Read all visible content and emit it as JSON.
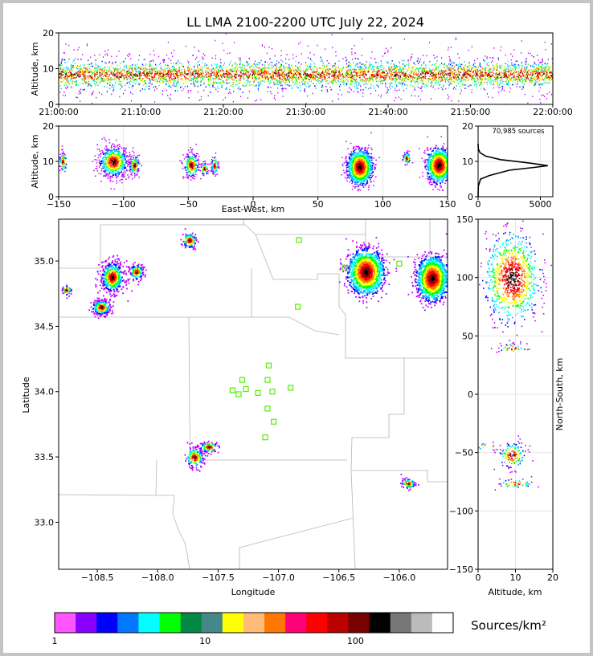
{
  "chart_data": {
    "type": "heatmap",
    "title": "LL LMA 2100-2200 UTC July 22, 2024",
    "colors": {
      "scale": [
        "#ff55ff",
        "#8800ff",
        "#0000ff",
        "#0077ff",
        "#00ffff",
        "#00ff00",
        "#008844",
        "#448888",
        "#ffff00",
        "#ffbb77",
        "#ff7700",
        "#ff0077",
        "#ff0000",
        "#bb0000",
        "#770000",
        "#000000",
        "#777777",
        "#bbbbbb",
        "#ffffff"
      ],
      "density_colors": [
        "#bb00ff",
        "#0000ff",
        "#00aaff",
        "#00ffff",
        "#00ff00",
        "#ffff00",
        "#ff7700",
        "#ff0000",
        "#880000",
        "#000000"
      ],
      "border": "#b5b5b5",
      "source_marker": "#55ee00",
      "grid": "#e6e6e6"
    },
    "time_height": {
      "ylabel": "Altitude, km",
      "xticks": [
        "21:00:00",
        "21:10:00",
        "21:20:00",
        "21:30:00",
        "21:40:00",
        "21:50:00",
        "22:00:00"
      ],
      "yticks": [
        "0",
        "10",
        "20"
      ],
      "ylim": [
        0,
        20
      ]
    },
    "ew_height": {
      "xlabel": "East-West, km",
      "ylabel": "Altitude, km",
      "xticks": [
        "−150",
        "−100",
        "−50",
        "0",
        "50",
        "100",
        "150"
      ],
      "yticks": [
        "0",
        "10",
        "20"
      ],
      "xlim": [
        -150,
        150
      ],
      "ylim": [
        0,
        20
      ],
      "clusters": [
        {
          "x": -108,
          "z": 10,
          "w": 12,
          "h": 5,
          "n": 220
        },
        {
          "x": -92,
          "z": 9,
          "w": 4,
          "h": 3,
          "n": 50
        },
        {
          "x": -48,
          "z": 9,
          "w": 6,
          "h": 4,
          "n": 90
        },
        {
          "x": -38,
          "z": 8,
          "w": 3,
          "h": 2,
          "n": 20
        },
        {
          "x": -30,
          "z": 9,
          "w": 3,
          "h": 3,
          "n": 30
        },
        {
          "x": 82,
          "z": 8.5,
          "w": 9,
          "h": 5,
          "n": 500
        },
        {
          "x": 118,
          "z": 11,
          "w": 3,
          "h": 2,
          "n": 25
        },
        {
          "x": 143,
          "z": 9,
          "w": 9,
          "h": 5,
          "n": 450
        },
        {
          "x": -147,
          "z": 10,
          "w": 3,
          "h": 3,
          "n": 30
        }
      ]
    },
    "histogram": {
      "label": "70,985 sources",
      "xticks": [
        "0",
        "5000"
      ],
      "yticks": [
        "0",
        "10",
        "20"
      ],
      "xlim": [
        0,
        6000
      ],
      "ylim": [
        0,
        20
      ],
      "curve": [
        [
          0,
          0
        ],
        [
          20,
          3
        ],
        [
          200,
          5
        ],
        [
          900,
          6
        ],
        [
          2500,
          7.5
        ],
        [
          4500,
          8.3
        ],
        [
          5600,
          8.8
        ],
        [
          4200,
          9.5
        ],
        [
          1800,
          10.5
        ],
        [
          600,
          11.5
        ],
        [
          150,
          12.5
        ],
        [
          20,
          13.5
        ],
        [
          0,
          15
        ]
      ]
    },
    "plan_view": {
      "xlabel": "Longitude",
      "ylabel": "Latitude",
      "xticks": [
        "−108.5",
        "−108.0",
        "−107.5",
        "−107.0",
        "−106.5",
        "−106.0"
      ],
      "yticks": [
        "33.0",
        "33.5",
        "34.0",
        "34.5",
        "35.0"
      ],
      "xlim": [
        -108.82,
        -105.6
      ],
      "ylim": [
        32.64,
        35.32
      ],
      "stations": [
        [
          -106.83,
          35.16
        ],
        [
          -106.45,
          34.95
        ],
        [
          -106.0,
          34.98
        ],
        [
          -106.84,
          34.65
        ],
        [
          -107.08,
          34.2
        ],
        [
          -107.3,
          34.09
        ],
        [
          -107.09,
          34.09
        ],
        [
          -107.38,
          34.01
        ],
        [
          -107.27,
          34.02
        ],
        [
          -107.17,
          33.99
        ],
        [
          -107.05,
          34.0
        ],
        [
          -106.9,
          34.03
        ],
        [
          -107.33,
          33.98
        ],
        [
          -107.09,
          33.87
        ],
        [
          -107.04,
          33.77
        ],
        [
          -107.11,
          33.65
        ]
      ],
      "clusters": [
        {
          "lon": -108.38,
          "lat": 34.88,
          "w": 0.05,
          "h": 0.06,
          "n": 180
        },
        {
          "lon": -108.18,
          "lat": 34.92,
          "w": 0.03,
          "h": 0.03,
          "n": 50
        },
        {
          "lon": -108.47,
          "lat": 34.65,
          "w": 0.04,
          "h": 0.03,
          "n": 90
        },
        {
          "lon": -108.76,
          "lat": 34.78,
          "w": 0.02,
          "h": 0.02,
          "n": 20
        },
        {
          "lon": -107.74,
          "lat": 35.16,
          "w": 0.03,
          "h": 0.03,
          "n": 40
        },
        {
          "lon": -107.7,
          "lat": 33.5,
          "w": 0.04,
          "h": 0.04,
          "n": 60
        },
        {
          "lon": -107.58,
          "lat": 33.58,
          "w": 0.04,
          "h": 0.02,
          "n": 40
        },
        {
          "lon": -106.28,
          "lat": 34.92,
          "w": 0.07,
          "h": 0.08,
          "n": 520
        },
        {
          "lon": -105.73,
          "lat": 34.87,
          "w": 0.06,
          "h": 0.08,
          "n": 480
        },
        {
          "lon": -105.93,
          "lat": 33.3,
          "w": 0.03,
          "h": 0.02,
          "n": 25
        }
      ]
    },
    "ns_height": {
      "xlabel": "Altitude, km",
      "ylabel": "North-South, km",
      "xticks": [
        "0",
        "10",
        "20"
      ],
      "yticks": [
        "150",
        "100",
        "50",
        "0",
        "−50",
        "−100",
        "−150"
      ],
      "xlim": [
        0,
        20
      ],
      "ylim": [
        -150,
        150
      ]
    },
    "colorbar": {
      "label": "Sources/km²",
      "ticks": [
        "1",
        "10",
        "100"
      ],
      "scale": "log"
    }
  }
}
